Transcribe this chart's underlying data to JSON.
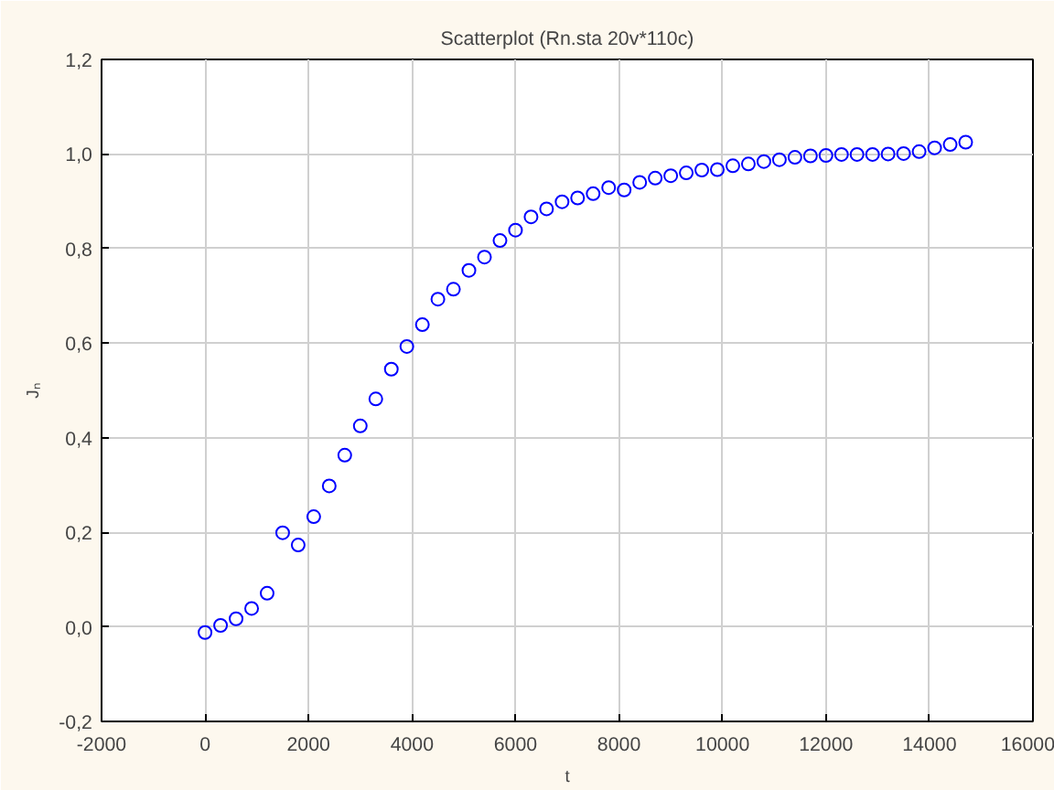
{
  "chart_data": {
    "type": "scatter",
    "title": "Scatterplot (Rn.sta 20v*110c)",
    "xlabel": "t",
    "ylabel": "Jₙ",
    "x": [
      0,
      300,
      600,
      900,
      1200,
      1500,
      1800,
      2100,
      2400,
      2700,
      3000,
      3300,
      3600,
      3900,
      4200,
      4500,
      4800,
      5100,
      5400,
      5700,
      6000,
      6300,
      6600,
      6900,
      7200,
      7500,
      7800,
      8100,
      8400,
      8700,
      9000,
      9300,
      9600,
      9900,
      10200,
      10500,
      10800,
      11100,
      11400,
      11700,
      12000,
      12300,
      12600,
      12900,
      13200,
      13500,
      13800,
      14100,
      14400,
      14700
    ],
    "series": [
      {
        "color": "#0000ff",
        "values": [
          -0.012,
          0.003,
          0.017,
          0.039,
          0.071,
          0.199,
          0.173,
          0.233,
          0.298,
          0.363,
          0.425,
          0.482,
          0.545,
          0.593,
          0.639,
          0.693,
          0.714,
          0.754,
          0.782,
          0.817,
          0.839,
          0.867,
          0.884,
          0.899,
          0.907,
          0.916,
          0.929,
          0.924,
          0.94,
          0.949,
          0.954,
          0.96,
          0.966,
          0.967,
          0.975,
          0.979,
          0.984,
          0.988,
          0.993,
          0.996,
          0.997,
          0.999,
          0.999,
          0.999,
          1.0,
          1.001,
          1.005,
          1.013,
          1.02,
          1.025
        ]
      }
    ],
    "marker": "circle",
    "grid": true,
    "xlim": [
      -2000,
      16000
    ],
    "xticks": [
      -2000,
      0,
      2000,
      4000,
      6000,
      8000,
      10000,
      12000,
      14000,
      16000
    ],
    "ylim": [
      -0.2,
      1.2
    ],
    "yticks": [
      {
        "value": -0.2,
        "label": "-0,2"
      },
      {
        "value": 0,
        "label": "0,0"
      },
      {
        "value": 0.2,
        "label": "0,2"
      },
      {
        "value": 0.4,
        "label": "0,4"
      },
      {
        "value": 0.6,
        "label": "0,6"
      },
      {
        "value": 0.8,
        "label": "0,8"
      },
      {
        "value": 1.0,
        "label": "1,0"
      },
      {
        "value": 1.2,
        "label": "1,2"
      }
    ]
  }
}
